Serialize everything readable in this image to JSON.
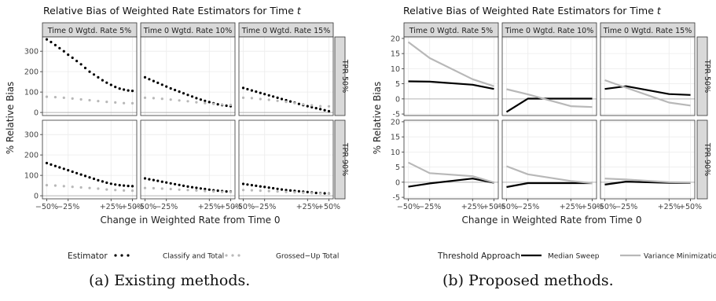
{
  "captions": {
    "a": "(a) Existing methods.",
    "b": "(b) Proposed methods."
  },
  "colors": {
    "panel_bg": "#ffffff",
    "panel_border": "#333333",
    "grid": "#ebebeb",
    "zero_line": "#b3b3b3",
    "strip_bg": "#d9d9d9",
    "dark_series": "#000000",
    "light_series": "#b8b8b8"
  },
  "chart_data": [
    {
      "type": "line",
      "title": "Relative Bias of Weighted Rate Estimators for Time ",
      "title_italic": "t",
      "xlabel": "Change in Weighted Rate from Time 0",
      "ylabel": "% Relative Bias",
      "x": [
        "−50%",
        "−25%",
        "+25%",
        "+50%"
      ],
      "x_ticks": [
        -50,
        -25,
        25,
        50
      ],
      "xlim": [
        -55,
        55
      ],
      "ylim": [
        -15,
        370
      ],
      "y_ticks": [
        0,
        100,
        200,
        300
      ],
      "grid": true,
      "legend_position": "bottom",
      "legend_title": "Estimator",
      "column_labels": [
        "Time 0 Wgtd. Rate 5%",
        "Time 0 Wgtd. Rate 10%",
        "Time 0 Wgtd. Rate 15%"
      ],
      "row_labels": [
        "TPR 50%",
        "TPR 90%"
      ],
      "series": [
        {
          "name": "Classify and Total",
          "color": "#000000",
          "style": "dotted"
        },
        {
          "name": "Grossed−Up Total",
          "color": "#b8b8b8",
          "style": "dotted"
        }
      ],
      "panels": [
        {
          "row": 0,
          "col": 0,
          "values": [
            {
              "x": [
                -50,
                -45,
                -40,
                -35,
                -30,
                -25,
                -20,
                -15,
                -10,
                -5,
                0,
                5,
                10,
                15,
                20,
                25,
                30,
                35,
                40,
                45,
                50
              ],
              "y": [
                358,
                345,
                330,
                315,
                300,
                283,
                268,
                252,
                236,
                218,
                200,
                186,
                172,
                158,
                146,
                135,
                125,
                117,
                112,
                108,
                106
              ]
            },
            {
              "x": [
                -50,
                -40,
                -30,
                -20,
                -10,
                0,
                10,
                20,
                30,
                40,
                50
              ],
              "y": [
                77,
                75,
                72,
                68,
                64,
                60,
                56,
                52,
                49,
                46,
                45
              ]
            }
          ]
        },
        {
          "row": 0,
          "col": 1,
          "values": [
            {
              "x": [
                -50,
                -45,
                -40,
                -35,
                -30,
                -25,
                -20,
                -15,
                -10,
                -5,
                0,
                5,
                10,
                15,
                20,
                25,
                30,
                35,
                40,
                45,
                50
              ],
              "y": [
                172,
                163,
                154,
                145,
                136,
                127,
                118,
                110,
                102,
                94,
                86,
                78,
                70,
                63,
                57,
                51,
                45,
                40,
                36,
                33,
                31
              ]
            },
            {
              "x": [
                -50,
                -40,
                -30,
                -20,
                -10,
                0,
                10,
                20,
                30,
                40,
                50
              ],
              "y": [
                72,
                70,
                67,
                63,
                59,
                55,
                50,
                46,
                42,
                39,
                37
              ]
            }
          ]
        },
        {
          "row": 0,
          "col": 2,
          "values": [
            {
              "x": [
                -50,
                -45,
                -40,
                -35,
                -30,
                -25,
                -20,
                -15,
                -10,
                -5,
                0,
                5,
                10,
                15,
                20,
                25,
                30,
                35,
                40,
                45,
                50
              ],
              "y": [
                120,
                114,
                108,
                102,
                96,
                90,
                84,
                78,
                72,
                66,
                60,
                54,
                48,
                42,
                36,
                31,
                26,
                21,
                16,
                11,
                6
              ]
            },
            {
              "x": [
                -50,
                -40,
                -30,
                -20,
                -10,
                0,
                10,
                20,
                30,
                40,
                50
              ],
              "y": [
                72,
                70,
                66,
                62,
                57,
                52,
                46,
                40,
                35,
                31,
                30
              ]
            }
          ]
        },
        {
          "row": 1,
          "col": 0,
          "values": [
            {
              "x": [
                -50,
                -45,
                -40,
                -35,
                -30,
                -25,
                -20,
                -15,
                -10,
                -5,
                0,
                5,
                10,
                15,
                20,
                25,
                30,
                35,
                40,
                45,
                50
              ],
              "y": [
                160,
                153,
                146,
                139,
                132,
                125,
                118,
                111,
                104,
                97,
                90,
                83,
                76,
                70,
                64,
                59,
                55,
                52,
                50,
                48,
                47
              ]
            },
            {
              "x": [
                -50,
                -40,
                -30,
                -20,
                -10,
                0,
                10,
                20,
                30,
                40,
                50
              ],
              "y": [
                52,
                50,
                47,
                44,
                41,
                38,
                35,
                31,
                28,
                26,
                25
              ]
            }
          ]
        },
        {
          "row": 1,
          "col": 1,
          "values": [
            {
              "x": [
                -50,
                -45,
                -40,
                -35,
                -30,
                -25,
                -20,
                -15,
                -10,
                -5,
                0,
                5,
                10,
                15,
                20,
                25,
                30,
                35,
                40,
                45,
                50
              ],
              "y": [
                85,
                81,
                77,
                73,
                69,
                65,
                61,
                57,
                53,
                49,
                45,
                42,
                39,
                36,
                33,
                30,
                27,
                25,
                23,
                21,
                20
              ]
            },
            {
              "x": [
                -50,
                -40,
                -30,
                -20,
                -10,
                0,
                10,
                20,
                30,
                40,
                50
              ],
              "y": [
                38,
                37,
                35,
                33,
                30,
                28,
                26,
                23,
                21,
                19,
                18
              ]
            }
          ]
        },
        {
          "row": 1,
          "col": 2,
          "values": [
            {
              "x": [
                -50,
                -45,
                -40,
                -35,
                -30,
                -25,
                -20,
                -15,
                -10,
                -5,
                0,
                5,
                10,
                15,
                20,
                25,
                30,
                35,
                40,
                45,
                50
              ],
              "y": [
                58,
                55,
                52,
                49,
                46,
                43,
                40,
                37,
                34,
                31,
                28,
                26,
                24,
                22,
                20,
                18,
                16,
                14,
                13,
                12,
                11
              ]
            },
            {
              "x": [
                -50,
                -40,
                -30,
                -20,
                -10,
                0,
                10,
                20,
                30,
                40,
                50
              ],
              "y": [
                28,
                27,
                25,
                23,
                21,
                19,
                17,
                15,
                13,
                11,
                10
              ]
            }
          ]
        }
      ]
    },
    {
      "type": "line",
      "title": "Relative Bias of Weighted Rate Estimators for Time ",
      "title_italic": "t",
      "xlabel": "Change in Weighted Rate from Time 0",
      "ylabel": "% Relative Bias",
      "x": [
        "−50%",
        "−25%",
        "+25%",
        "+50%"
      ],
      "x_ticks": [
        -50,
        -25,
        25,
        50
      ],
      "xlim": [
        -55,
        55
      ],
      "ylim": [
        -5.5,
        20.5
      ],
      "y_ticks": [
        -5,
        0,
        5,
        10,
        15,
        20
      ],
      "grid": true,
      "legend_position": "bottom",
      "legend_title": "Threshold Approach",
      "column_labels": [
        "Time 0 Wgtd. Rate 5%",
        "Time 0 Wgtd. Rate 10%",
        "Time 0 Wgtd. Rate 15%"
      ],
      "row_labels": [
        "TPR 50%",
        "TPR 90%"
      ],
      "series": [
        {
          "name": "Median Sweep",
          "color": "#000000",
          "style": "solid"
        },
        {
          "name": "Variance Minimization",
          "color": "#b8b8b8",
          "style": "solid"
        }
      ],
      "panels": [
        {
          "row": 0,
          "col": 0,
          "values": [
            {
              "x": [
                -50,
                -25,
                25,
                50
              ],
              "y": [
                5.8,
                5.7,
                4.7,
                3.3
              ]
            },
            {
              "x": [
                -50,
                -25,
                25,
                50
              ],
              "y": [
                18.8,
                13.5,
                6.5,
                4.2
              ]
            }
          ]
        },
        {
          "row": 0,
          "col": 1,
          "values": [
            {
              "x": [
                -50,
                -25,
                25,
                50
              ],
              "y": [
                -4.3,
                0.1,
                0.1,
                0.1
              ]
            },
            {
              "x": [
                -50,
                -25,
                25,
                50
              ],
              "y": [
                3.2,
                1.5,
                -2.4,
                -2.7
              ]
            }
          ]
        },
        {
          "row": 0,
          "col": 2,
          "values": [
            {
              "x": [
                -50,
                -25,
                25,
                50
              ],
              "y": [
                3.3,
                4.2,
                1.6,
                1.3
              ]
            },
            {
              "x": [
                -50,
                -25,
                25,
                50
              ],
              "y": [
                6.2,
                3.7,
                -1.2,
                -2.2
              ]
            }
          ]
        },
        {
          "row": 1,
          "col": 0,
          "values": [
            {
              "x": [
                -50,
                -25,
                25,
                50
              ],
              "y": [
                -1.5,
                -0.4,
                1.2,
                -0.2
              ]
            },
            {
              "x": [
                -50,
                -25,
                25,
                50
              ],
              "y": [
                6.5,
                3.0,
                2.0,
                -0.1
              ]
            }
          ]
        },
        {
          "row": 1,
          "col": 1,
          "values": [
            {
              "x": [
                -50,
                -25,
                25,
                50
              ],
              "y": [
                -1.6,
                -0.3,
                -0.3,
                -0.3
              ]
            },
            {
              "x": [
                -50,
                -25,
                25,
                50
              ],
              "y": [
                5.3,
                2.6,
                0.4,
                -0.3
              ]
            }
          ]
        },
        {
          "row": 1,
          "col": 2,
          "values": [
            {
              "x": [
                -50,
                -25,
                25,
                50
              ],
              "y": [
                -0.8,
                0.2,
                -0.2,
                -0.2
              ]
            },
            {
              "x": [
                -50,
                -25,
                25,
                50
              ],
              "y": [
                1.2,
                0.9,
                0.0,
                -0.1
              ]
            }
          ]
        }
      ]
    }
  ]
}
